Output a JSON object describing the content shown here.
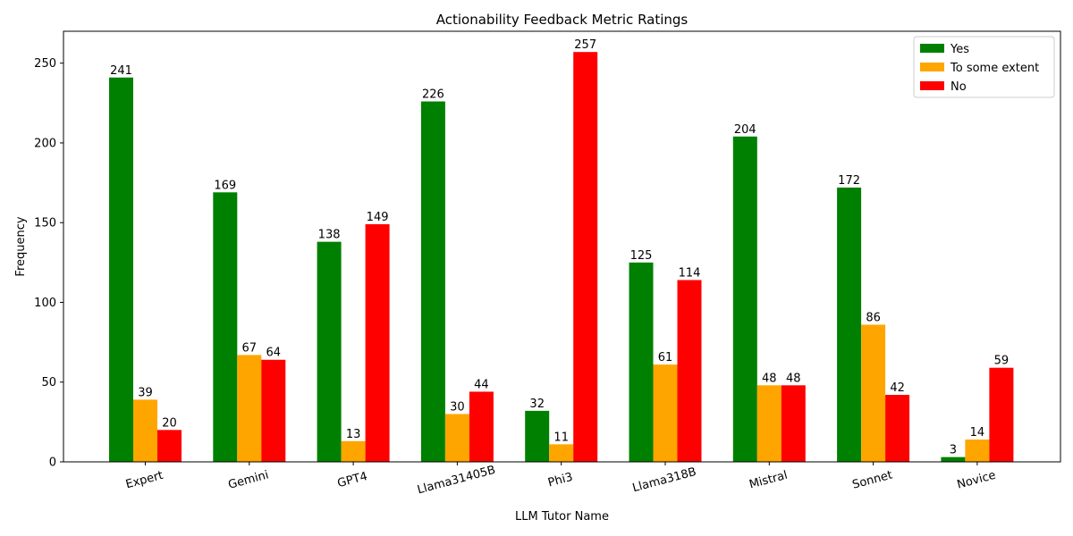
{
  "chart_data": {
    "type": "bar",
    "title": "Actionability Feedback Metric Ratings",
    "xlabel": "LLM Tutor Name",
    "ylabel": "Frequency",
    "ylim": [
      0,
      270
    ],
    "yticks": [
      0,
      50,
      100,
      150,
      200,
      250
    ],
    "categories": [
      "Expert",
      "Gemini",
      "GPT4",
      "Llama31405B",
      "Phi3",
      "Llama318B",
      "Mistral",
      "Sonnet",
      "Novice"
    ],
    "series": [
      {
        "name": "Yes",
        "color": "#008000",
        "values": [
          241,
          169,
          138,
          226,
          32,
          125,
          204,
          172,
          3
        ]
      },
      {
        "name": "To some extent",
        "color": "#FFA500",
        "values": [
          39,
          67,
          13,
          30,
          11,
          61,
          48,
          86,
          14
        ]
      },
      {
        "name": "No",
        "color": "#FF0000",
        "values": [
          20,
          64,
          149,
          44,
          257,
          114,
          48,
          42,
          59
        ]
      }
    ],
    "legend_position": "top-right",
    "grid": false,
    "xtick_rotation": "rotated"
  }
}
